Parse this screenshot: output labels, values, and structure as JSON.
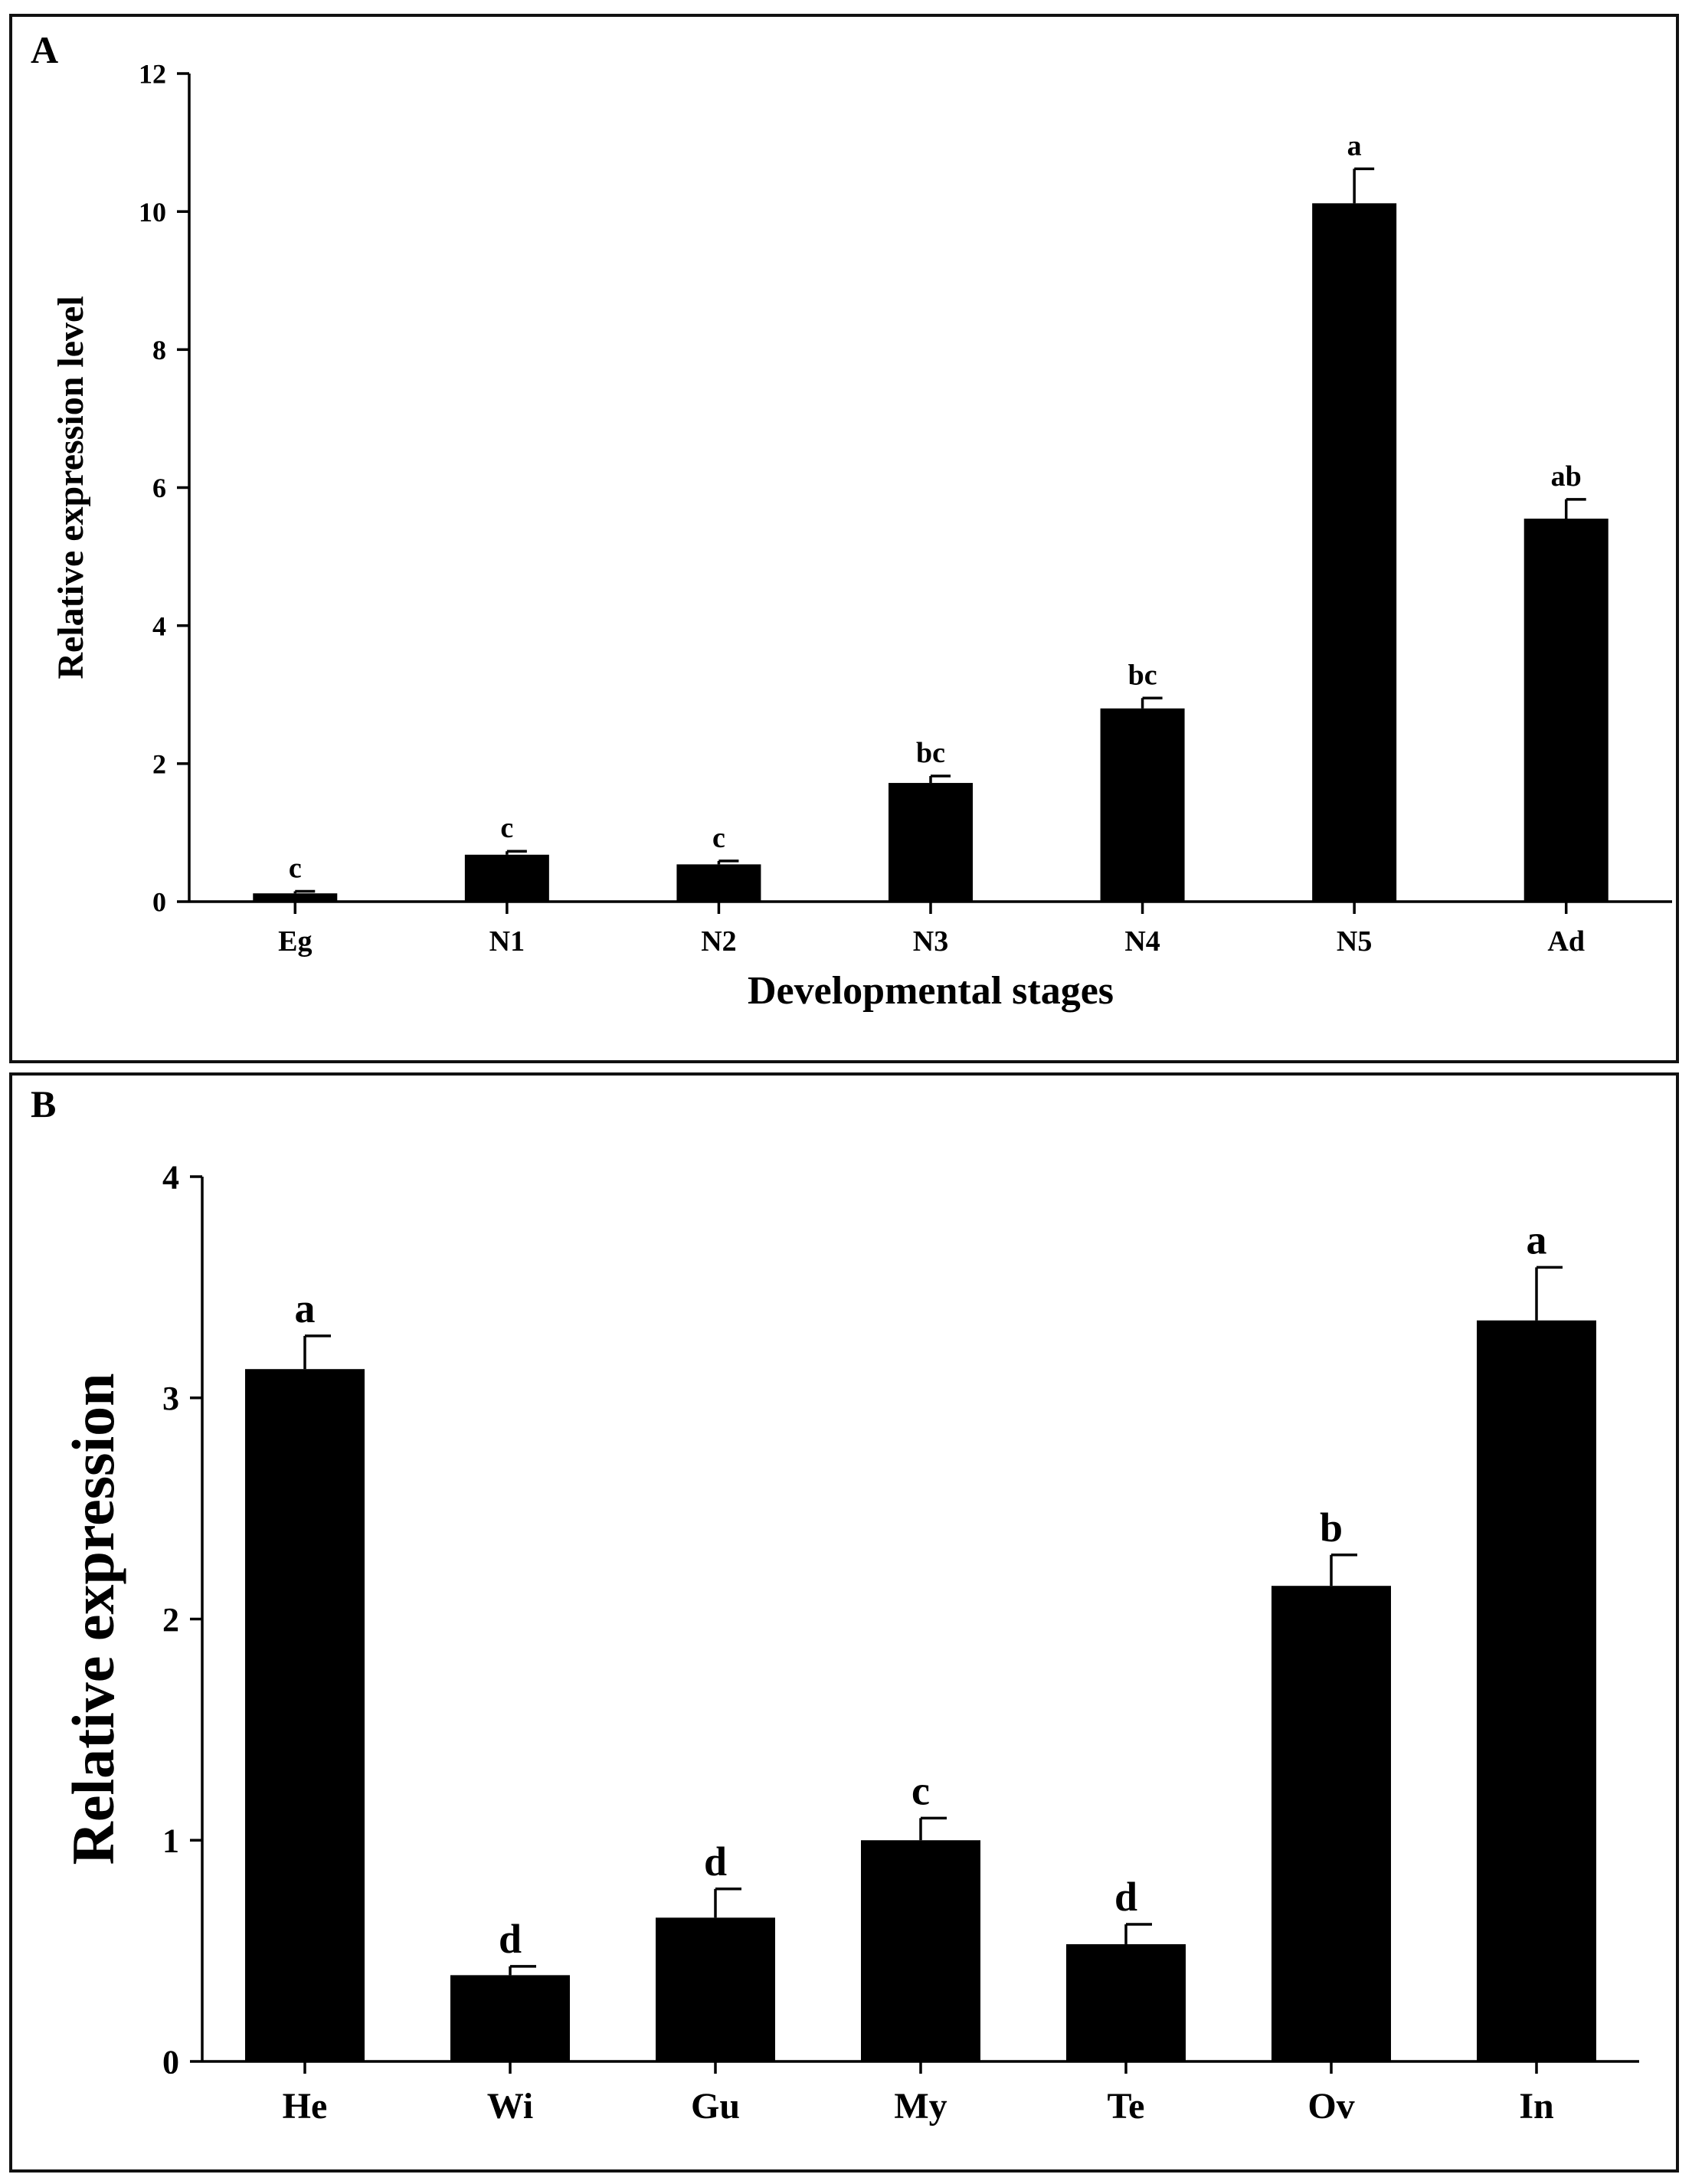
{
  "chart_data": [
    {
      "panel": "A",
      "type": "bar",
      "title": "",
      "xlabel": "Developmental stages",
      "ylabel": "Relative expression level",
      "categories": [
        "Eg",
        "N1",
        "N2",
        "N3",
        "N4",
        "N5",
        "Ad"
      ],
      "values": [
        0.12,
        0.68,
        0.54,
        1.72,
        2.8,
        10.12,
        5.55
      ],
      "errors": [
        0.03,
        0.05,
        0.05,
        0.1,
        0.15,
        0.5,
        0.28
      ],
      "significance": [
        "c",
        "c",
        "c",
        "bc",
        "bc",
        "a",
        "ab"
      ],
      "ylim": [
        0,
        12
      ],
      "yticks": [
        0,
        2,
        4,
        6,
        8,
        10,
        12
      ],
      "bar_color": "#000000",
      "grid": false
    },
    {
      "panel": "B",
      "type": "bar",
      "title": "",
      "xlabel": "",
      "ylabel": "Relative expression",
      "categories": [
        "He",
        "Wi",
        "Gu",
        "My",
        "Te",
        "Ov",
        "In"
      ],
      "values": [
        3.13,
        0.39,
        0.65,
        1.0,
        0.53,
        2.15,
        3.35
      ],
      "errors": [
        0.15,
        0.04,
        0.13,
        0.1,
        0.09,
        0.14,
        0.24
      ],
      "significance": [
        "a",
        "d",
        "d",
        "c",
        "d",
        "b",
        "a"
      ],
      "ylim": [
        0,
        4
      ],
      "yticks": [
        0,
        1,
        2,
        3,
        4
      ],
      "bar_color": "#000000",
      "grid": false
    }
  ]
}
